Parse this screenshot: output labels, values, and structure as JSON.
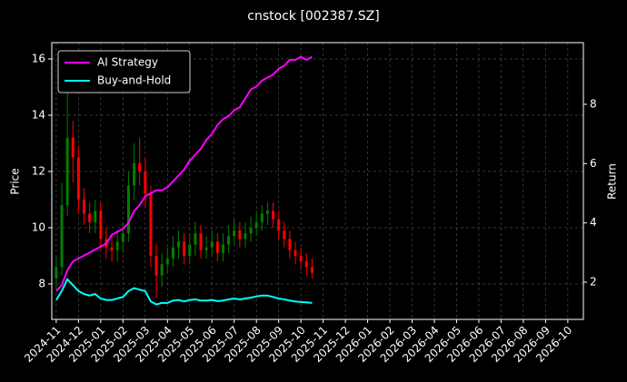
{
  "chart_data": {
    "type": "candlestick",
    "title": "cnstock [002387.SZ]",
    "ylabel": "Price",
    "y2label": "Return",
    "x": [
      0,
      0.25,
      0.5,
      0.75,
      1,
      1.25,
      1.5,
      1.75,
      2,
      2.25,
      2.5,
      2.75,
      3,
      3.25,
      3.5,
      3.75,
      4,
      4.25,
      4.5,
      4.75,
      5,
      5.25,
      5.5,
      5.75,
      6,
      6.25,
      6.5,
      6.75,
      7,
      7.25,
      7.5,
      7.75,
      8,
      8.25,
      8.5,
      8.75,
      9,
      9.25,
      9.5,
      9.75,
      10,
      10.25,
      10.5,
      10.75,
      11,
      11.25,
      11.5
    ],
    "open": [
      8.2,
      8.6,
      10.8,
      13.2,
      12.5,
      11.0,
      10.5,
      10.2,
      10.6,
      9.6,
      9.3,
      9.2,
      9.5,
      9.8,
      11.5,
      12.3,
      12.0,
      11.2,
      9.0,
      8.3,
      8.7,
      8.9,
      9.3,
      9.5,
      9.0,
      9.4,
      9.8,
      9.2,
      9.3,
      9.5,
      9.1,
      9.4,
      9.7,
      9.9,
      9.6,
      9.8,
      10.0,
      10.2,
      10.5,
      10.6,
      10.3,
      9.9,
      9.6,
      9.2,
      9.0,
      8.8,
      8.6
    ],
    "high": [
      9.0,
      11.6,
      14.8,
      13.8,
      12.9,
      11.4,
      10.9,
      11.0,
      10.9,
      10.0,
      9.7,
      9.9,
      10.2,
      12.0,
      13.0,
      13.2,
      12.5,
      11.5,
      9.4,
      9.1,
      9.3,
      9.7,
      9.9,
      9.8,
      9.8,
      10.2,
      10.1,
      9.7,
      9.9,
      9.8,
      9.8,
      10.1,
      10.3,
      10.2,
      10.2,
      10.4,
      10.6,
      10.8,
      10.9,
      10.9,
      10.6,
      10.2,
      9.9,
      9.5,
      9.3,
      9.1,
      8.9
    ],
    "low": [
      7.8,
      8.3,
      10.4,
      11.6,
      10.5,
      10.1,
      9.8,
      9.8,
      9.2,
      8.9,
      8.8,
      8.8,
      9.1,
      9.5,
      11.0,
      11.5,
      10.7,
      8.6,
      7.5,
      7.9,
      8.4,
      8.6,
      8.9,
      8.7,
      8.7,
      9.0,
      8.9,
      8.9,
      9.0,
      8.8,
      8.8,
      9.1,
      9.4,
      9.3,
      9.3,
      9.5,
      9.7,
      9.9,
      10.1,
      10.0,
      9.6,
      9.3,
      8.9,
      8.7,
      8.5,
      8.3,
      8.2
    ],
    "close": [
      8.6,
      10.8,
      13.2,
      12.5,
      11.0,
      10.5,
      10.2,
      10.6,
      9.6,
      9.3,
      9.2,
      9.5,
      9.8,
      11.5,
      12.3,
      12.0,
      11.2,
      9.0,
      8.3,
      8.7,
      8.9,
      9.3,
      9.5,
      9.0,
      9.4,
      9.8,
      9.2,
      9.3,
      9.5,
      9.1,
      9.4,
      9.7,
      9.9,
      9.6,
      9.8,
      10.0,
      10.2,
      10.5,
      10.6,
      10.3,
      9.9,
      9.6,
      9.2,
      9.0,
      8.8,
      8.6,
      8.4
    ],
    "up_color": "#008000",
    "down_color": "#ff0000",
    "series": [
      {
        "name": "AI Strategy",
        "color": "#ff00ff",
        "axis": "y2",
        "values": [
          1.7,
          1.9,
          2.4,
          2.7,
          2.8,
          2.9,
          3.0,
          3.1,
          3.2,
          3.3,
          3.6,
          3.7,
          3.8,
          4.0,
          4.4,
          4.6,
          4.9,
          5.0,
          5.1,
          5.1,
          5.2,
          5.4,
          5.6,
          5.8,
          6.1,
          6.3,
          6.5,
          6.8,
          7.0,
          7.3,
          7.5,
          7.6,
          7.8,
          7.9,
          8.2,
          8.5,
          8.6,
          8.8,
          8.9,
          9.0,
          9.2,
          9.3,
          9.5,
          9.5,
          9.6,
          9.5,
          9.6
        ]
      },
      {
        "name": "Buy-and-Hold",
        "color": "#00ffff",
        "axis": "y2",
        "values": [
          1.4,
          1.7,
          2.1,
          1.9,
          1.7,
          1.6,
          1.55,
          1.6,
          1.45,
          1.4,
          1.4,
          1.45,
          1.5,
          1.7,
          1.8,
          1.75,
          1.7,
          1.35,
          1.25,
          1.3,
          1.3,
          1.38,
          1.4,
          1.35,
          1.4,
          1.42,
          1.38,
          1.38,
          1.4,
          1.36,
          1.38,
          1.42,
          1.45,
          1.42,
          1.45,
          1.48,
          1.52,
          1.55,
          1.55,
          1.5,
          1.45,
          1.42,
          1.38,
          1.35,
          1.33,
          1.32,
          1.3
        ]
      }
    ],
    "xlim": [
      -0.2,
      23.7
    ],
    "xticks": [
      {
        "value": 0,
        "label": "2024-11"
      },
      {
        "value": 1,
        "label": "2024-12"
      },
      {
        "value": 2,
        "label": "2025-01"
      },
      {
        "value": 3,
        "label": "2025-02"
      },
      {
        "value": 4,
        "label": "2025-03"
      },
      {
        "value": 5,
        "label": "2025-04"
      },
      {
        "value": 6,
        "label": "2025-05"
      },
      {
        "value": 7,
        "label": "2025-06"
      },
      {
        "value": 8,
        "label": "2025-07"
      },
      {
        "value": 9,
        "label": "2025-08"
      },
      {
        "value": 10,
        "label": "2025-09"
      },
      {
        "value": 11,
        "label": "2025-10"
      },
      {
        "value": 12,
        "label": "2025-11"
      },
      {
        "value": 13,
        "label": "2025-12"
      },
      {
        "value": 14,
        "label": "2026-01"
      },
      {
        "value": 15,
        "label": "2026-02"
      },
      {
        "value": 16,
        "label": "2026-03"
      },
      {
        "value": 17,
        "label": "2026-04"
      },
      {
        "value": 18,
        "label": "2026-05"
      },
      {
        "value": 19,
        "label": "2026-06"
      },
      {
        "value": 20,
        "label": "2026-07"
      },
      {
        "value": 21,
        "label": "2026-08"
      },
      {
        "value": 22,
        "label": "2026-09"
      },
      {
        "value": 23,
        "label": "2026-10"
      }
    ],
    "ylim": [
      6.74,
      16.58
    ],
    "yticks": [
      8,
      10,
      12,
      14,
      16
    ],
    "y2lim": [
      0.745,
      10.08
    ],
    "y2ticks": [
      2,
      4,
      6,
      8
    ],
    "grid": true,
    "legend": "upper left"
  }
}
